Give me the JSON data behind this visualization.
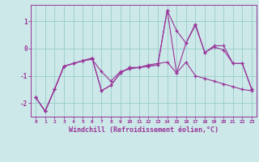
{
  "x": [
    0,
    1,
    2,
    3,
    4,
    5,
    6,
    7,
    8,
    9,
    10,
    11,
    12,
    13,
    14,
    15,
    16,
    17,
    18,
    19,
    20,
    21,
    22,
    23
  ],
  "line1": [
    -1.8,
    -2.3,
    -1.5,
    -0.65,
    -0.55,
    -0.45,
    -0.4,
    -0.85,
    -1.2,
    -0.85,
    -0.75,
    -0.7,
    -0.6,
    -0.55,
    -0.5,
    -0.9,
    -0.5,
    -1.0,
    -1.1,
    -1.2,
    -1.3,
    -1.4,
    -1.5,
    -1.55
  ],
  "line2": [
    -1.8,
    -2.3,
    -1.5,
    -0.65,
    -0.55,
    -0.45,
    -0.35,
    -1.55,
    -1.35,
    -0.9,
    -0.7,
    -0.7,
    -0.65,
    -0.6,
    1.4,
    0.65,
    0.2,
    0.9,
    -0.15,
    0.1,
    0.1,
    -0.55,
    -0.55,
    -1.5
  ],
  "line3": [
    -1.8,
    -2.3,
    -1.5,
    -0.65,
    -0.55,
    -0.45,
    -0.35,
    -1.55,
    -1.35,
    -0.9,
    -0.7,
    -0.7,
    -0.65,
    -0.6,
    1.4,
    -0.9,
    0.2,
    0.85,
    -0.15,
    0.05,
    -0.05,
    -0.55,
    -0.55,
    -1.5
  ],
  "line_color": "#993399",
  "bg_color": "#cce8e8",
  "grid_color": "#99cccc",
  "xlabel": "Windchill (Refroidissement éolien,°C)",
  "ylim": [
    -2.5,
    1.6
  ],
  "xlim": [
    -0.5,
    23.5
  ],
  "yticks": [
    -2,
    -1,
    0,
    1
  ],
  "xticks": [
    0,
    1,
    2,
    3,
    4,
    5,
    6,
    7,
    8,
    9,
    10,
    11,
    12,
    13,
    14,
    15,
    16,
    17,
    18,
    19,
    20,
    21,
    22,
    23
  ],
  "marker": "+",
  "figsize": [
    3.2,
    2.0
  ],
  "dpi": 100
}
